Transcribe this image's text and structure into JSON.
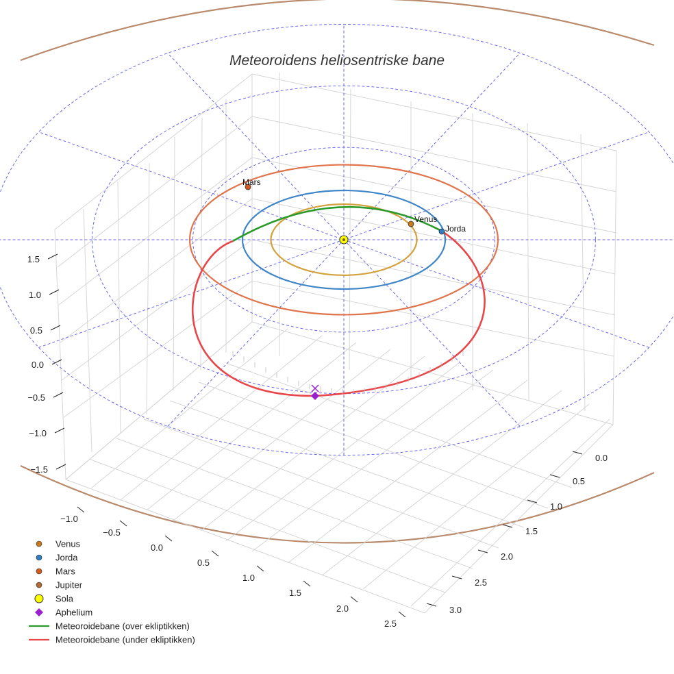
{
  "chart_data": {
    "type": "3d-line",
    "title": "Meteoroidens heliosentriske bane",
    "z_ticks": [
      "−1.5",
      "−1.0",
      "−0.5",
      "0.0",
      "0.5",
      "1.0",
      "1.5"
    ],
    "x_ticks": [
      "−1.0",
      "−0.5",
      "0.0",
      "0.5",
      "1.0",
      "1.5",
      "2.0",
      "2.5"
    ],
    "y_ticks": [
      "0.0",
      "0.5",
      "1.0",
      "1.5",
      "2.0",
      "2.5",
      "3.0"
    ],
    "orbits": [
      {
        "name": "Venus",
        "a": 0.72,
        "color": "#d4a23c"
      },
      {
        "name": "Jorda",
        "a": 1.0,
        "color": "#3f86c8"
      },
      {
        "name": "Mars",
        "a": 1.52,
        "color": "#e0744a"
      },
      {
        "name": "Jupiter",
        "a": 5.2,
        "color": "#b98a6b"
      }
    ],
    "ecliptic_grid": {
      "rings": [
        1.5,
        2.5,
        3.5
      ],
      "spokes": 12,
      "color": "#6a6ae8"
    },
    "bodies": [
      {
        "name": "Venus",
        "label": "Venus",
        "x": -0.14,
        "y": 0.7,
        "color": "#c87a1e"
      },
      {
        "name": "Jorda",
        "label": "Jorda",
        "x": 0.05,
        "y": 1.0,
        "color": "#2f7fc1"
      },
      {
        "name": "Mars",
        "label": "Mars",
        "x": 0.93,
        "y": -1.2,
        "color": "#d45a1f"
      },
      {
        "name": "Jupiter",
        "label": "",
        "x": 0,
        "y": 0,
        "color": "#b06a35"
      }
    ],
    "meteoroid_orbit": {
      "a": 2.05,
      "e": 0.51,
      "inclination_deg": 8,
      "perihelion_deg": 90,
      "above_color": "#2a9a2a",
      "below_color": "#e8474a"
    },
    "aphelium": {
      "x": 3.1,
      "y": 0.0,
      "z": -0.08,
      "color": "#9a1fcf"
    },
    "legend": [
      {
        "label": "Venus",
        "marker": "circle",
        "color": "#c87a1e"
      },
      {
        "label": "Jorda",
        "marker": "circle",
        "color": "#2f7fc1"
      },
      {
        "label": "Mars",
        "marker": "circle",
        "color": "#d45a1f"
      },
      {
        "label": "Jupiter",
        "marker": "circle",
        "color": "#b06a35"
      },
      {
        "label": "Sola",
        "marker": "circle-big",
        "color": "#ffff00"
      },
      {
        "label": "Aphelium",
        "marker": "diamond",
        "color": "#9a1fcf"
      },
      {
        "label": "Meteoroidebane (over ekliptikken)",
        "marker": "line",
        "color": "#2a9a2a"
      },
      {
        "label": "Meteoroidebane (under ekliptikken)",
        "marker": "line",
        "color": "#e8474a"
      }
    ]
  }
}
